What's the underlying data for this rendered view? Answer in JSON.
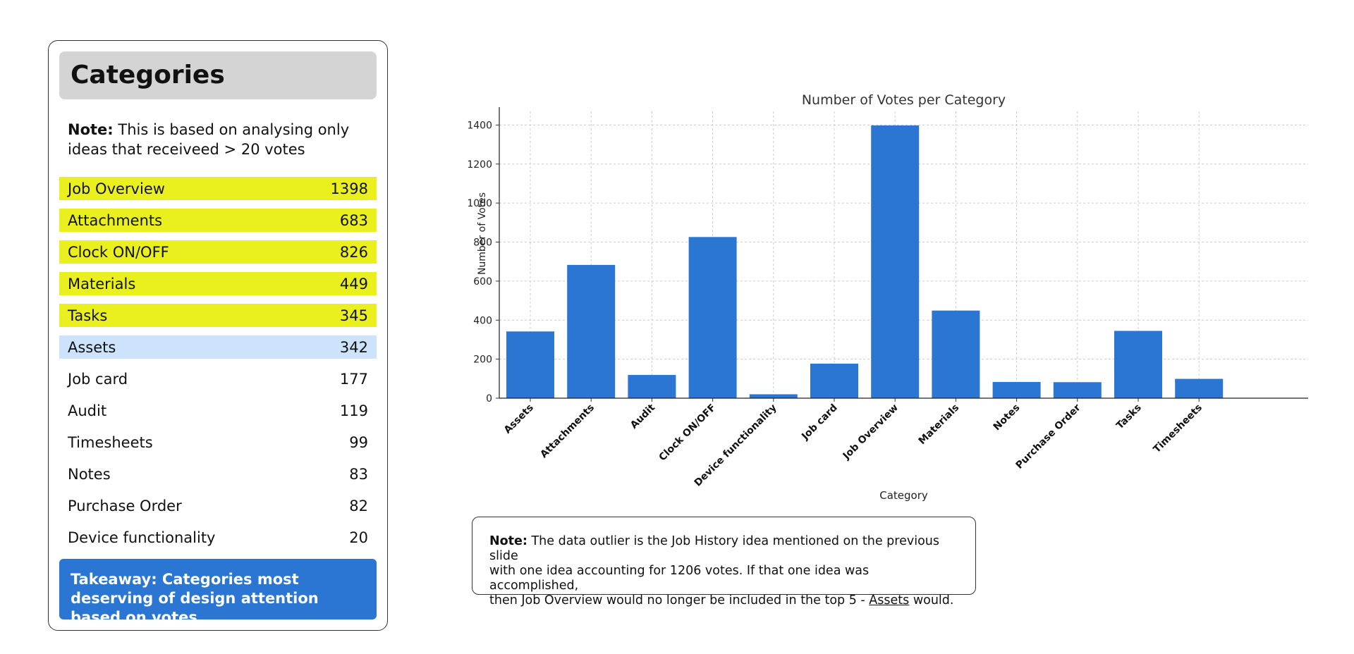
{
  "panel": {
    "title": "Categories",
    "note_label": "Note:",
    "note_text": " This is based on analysing only ideas that receiveed > 20 votes",
    "rows": [
      {
        "name": "Job Overview",
        "value": "1398",
        "highlight": "top5"
      },
      {
        "name": "Attachments",
        "value": "683",
        "highlight": "top5"
      },
      {
        "name": "Clock ON/OFF",
        "value": "826",
        "highlight": "top5"
      },
      {
        "name": "Materials",
        "value": "449",
        "highlight": "top5"
      },
      {
        "name": "Tasks",
        "value": "345",
        "highlight": "top5"
      },
      {
        "name": "Assets",
        "value": "342",
        "highlight": "next"
      },
      {
        "name": "Job card",
        "value": "177",
        "highlight": "none"
      },
      {
        "name": "Audit",
        "value": "119",
        "highlight": "none"
      },
      {
        "name": "Timesheets",
        "value": "99",
        "highlight": "none"
      },
      {
        "name": "Notes",
        "value": "83",
        "highlight": "none"
      },
      {
        "name": "Purchase Order",
        "value": "82",
        "highlight": "none"
      },
      {
        "name": "Device functionality",
        "value": "20",
        "highlight": "none"
      }
    ],
    "takeaway": "Takeaway: Categories most deserving of design attention based on votes"
  },
  "colors": {
    "top5": "#eaf01e",
    "next": "#cce3fb",
    "bar": "#2a76d2",
    "takeaway": "#2a76d2"
  },
  "chart_data": {
    "type": "bar",
    "title": "Number of Votes per Category",
    "xlabel": "Category",
    "ylabel": "Number of Votes",
    "categories": [
      "Assets",
      "Attachments",
      "Audit",
      "Clock ON/OFF",
      "Device functionality",
      "Job card",
      "Job Overview",
      "Materials",
      "Notes",
      "Purchase Order",
      "Tasks",
      "Timesheets"
    ],
    "values": [
      342,
      683,
      119,
      826,
      20,
      177,
      1398,
      449,
      83,
      82,
      345,
      99
    ],
    "yticks": [
      0,
      200,
      400,
      600,
      800,
      1000,
      1200,
      1400
    ],
    "ylim": [
      0,
      1470
    ],
    "grid": true
  },
  "bottom_note": {
    "label": "Note:",
    "line1": " The data outlier is the Job History idea mentioned on the previous slide",
    "line2": "with one idea accounting for 1206 votes.  If that one idea was accomplished,",
    "line3_before": "then Job Overview would no longer be included in the top 5 - ",
    "line3_link": "Assets",
    "line3_after": " would."
  }
}
